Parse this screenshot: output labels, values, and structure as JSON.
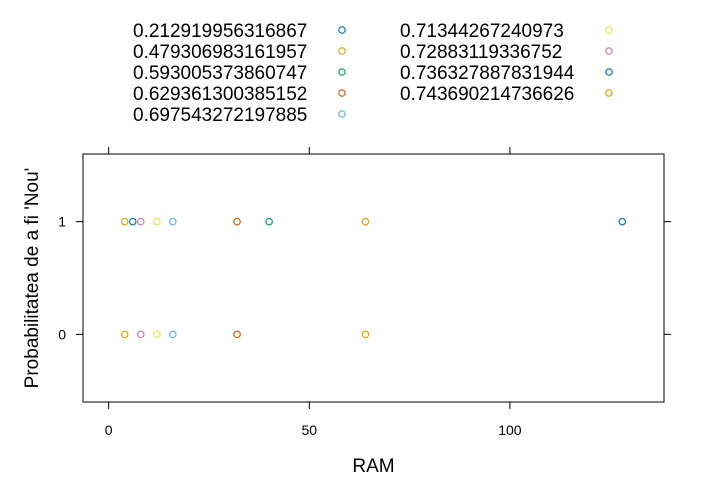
{
  "chart_data": {
    "type": "scatter",
    "title": "",
    "xlabel": "RAM",
    "ylabel": "Probabilitatea de a fi 'Nou'",
    "xlim": [
      -6.4,
      138.4
    ],
    "ylim": [
      -0.6,
      1.6
    ],
    "xticks": [
      0,
      50,
      100
    ],
    "yticks": [
      0,
      1
    ],
    "grid": false,
    "legend_position": "top",
    "series": [
      {
        "name": "0.212919956316867",
        "color": "#0072B2",
        "points": [
          [
            128,
            1
          ]
        ]
      },
      {
        "name": "0.479306983161957",
        "color": "#E69F00",
        "points": [
          [
            4,
            1
          ],
          [
            4,
            0
          ]
        ]
      },
      {
        "name": "0.593005373860747",
        "color": "#009E73",
        "points": [
          [
            40,
            1
          ]
        ]
      },
      {
        "name": "0.629361300385152",
        "color": "#D55E00",
        "points": [
          [
            32,
            1
          ],
          [
            32,
            0
          ]
        ]
      },
      {
        "name": "0.697543272197885",
        "color": "#56B4E9",
        "points": [
          [
            16,
            1
          ],
          [
            16,
            0
          ]
        ]
      },
      {
        "name": "0.71344267240973",
        "color": "#F0E442",
        "points": [
          [
            12,
            1
          ],
          [
            12,
            0
          ]
        ]
      },
      {
        "name": "0.72883119336752",
        "color": "#CC79A7",
        "points": [
          [
            8,
            1
          ],
          [
            8,
            0
          ]
        ]
      },
      {
        "name": "0.736327887831944",
        "color": "#0072B2",
        "points": [
          [
            6,
            1
          ]
        ]
      },
      {
        "name": "0.743690214736626",
        "color": "#E69F00",
        "points": [
          [
            64,
            1
          ],
          [
            64,
            0
          ]
        ]
      }
    ]
  }
}
